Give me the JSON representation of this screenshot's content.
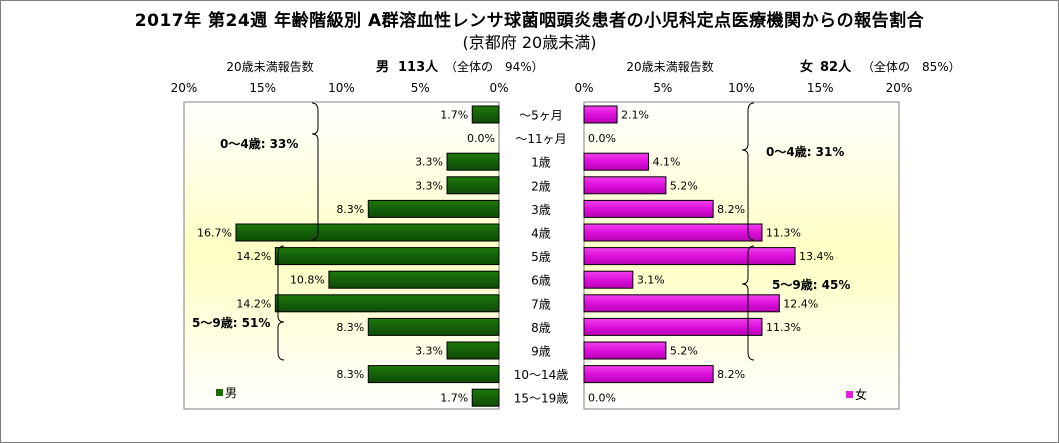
{
  "title": "2017年 第24週 年齢階級別 A群溶血性レンサ球菌咽頭炎患者の小児科定点医療機関からの報告割合",
  "subtitle": "(京都府 20歳未満)",
  "chart_data": {
    "type": "bar",
    "orientation": "horizontal-population-pyramid",
    "categories": [
      "～5ヶ月",
      "～11ヶ月",
      "1歳",
      "2歳",
      "3歳",
      "4歳",
      "5歳",
      "6歳",
      "7歳",
      "8歳",
      "9歳",
      "10～14歳",
      "15～19歳"
    ],
    "left_panel": {
      "subtitle": "20歳未満報告数",
      "header_name": "男",
      "header_count": "113人",
      "header_share": "（全体の　94%）",
      "ticks": [
        "20%",
        "15%",
        "10%",
        "5%",
        "0%"
      ],
      "xlim": [
        0,
        20
      ],
      "annotations": [
        "0～4歳: 33%",
        "5～9歳: 51%"
      ],
      "legend": "男",
      "series": [
        {
          "name": "男",
          "color": "#1a6b00",
          "values": [
            1.7,
            0.0,
            3.3,
            3.3,
            8.3,
            16.7,
            14.2,
            10.8,
            14.2,
            8.3,
            3.3,
            8.3,
            1.7
          ],
          "labels": [
            "1.7%",
            "0.0%",
            "3.3%",
            "3.3%",
            "8.3%",
            "16.7%",
            "14.2%",
            "10.8%",
            "14.2%",
            "8.3%",
            "3.3%",
            "8.3%",
            "1.7%"
          ]
        }
      ]
    },
    "right_panel": {
      "subtitle": "20歳未満報告数",
      "header_name": "女",
      "header_count": "82人",
      "header_share": "（全体の　85%）",
      "ticks": [
        "0%",
        "5%",
        "10%",
        "15%",
        "20%"
      ],
      "xlim": [
        0,
        20
      ],
      "annotations": [
        "0～4歳: 31%",
        "5～9歳: 45%"
      ],
      "legend": "女",
      "series": [
        {
          "name": "女",
          "color": "#e21ee0",
          "values": [
            2.1,
            0.0,
            4.1,
            5.2,
            8.2,
            11.3,
            13.4,
            3.1,
            12.4,
            11.3,
            5.2,
            8.2,
            0.0
          ],
          "labels": [
            "2.1%",
            "0.0%",
            "4.1%",
            "5.2%",
            "8.2%",
            "11.3%",
            "13.4%",
            "3.1%",
            "12.4%",
            "11.3%",
            "5.2%",
            "8.2%",
            "0.0%"
          ]
        }
      ]
    },
    "grid": false
  }
}
